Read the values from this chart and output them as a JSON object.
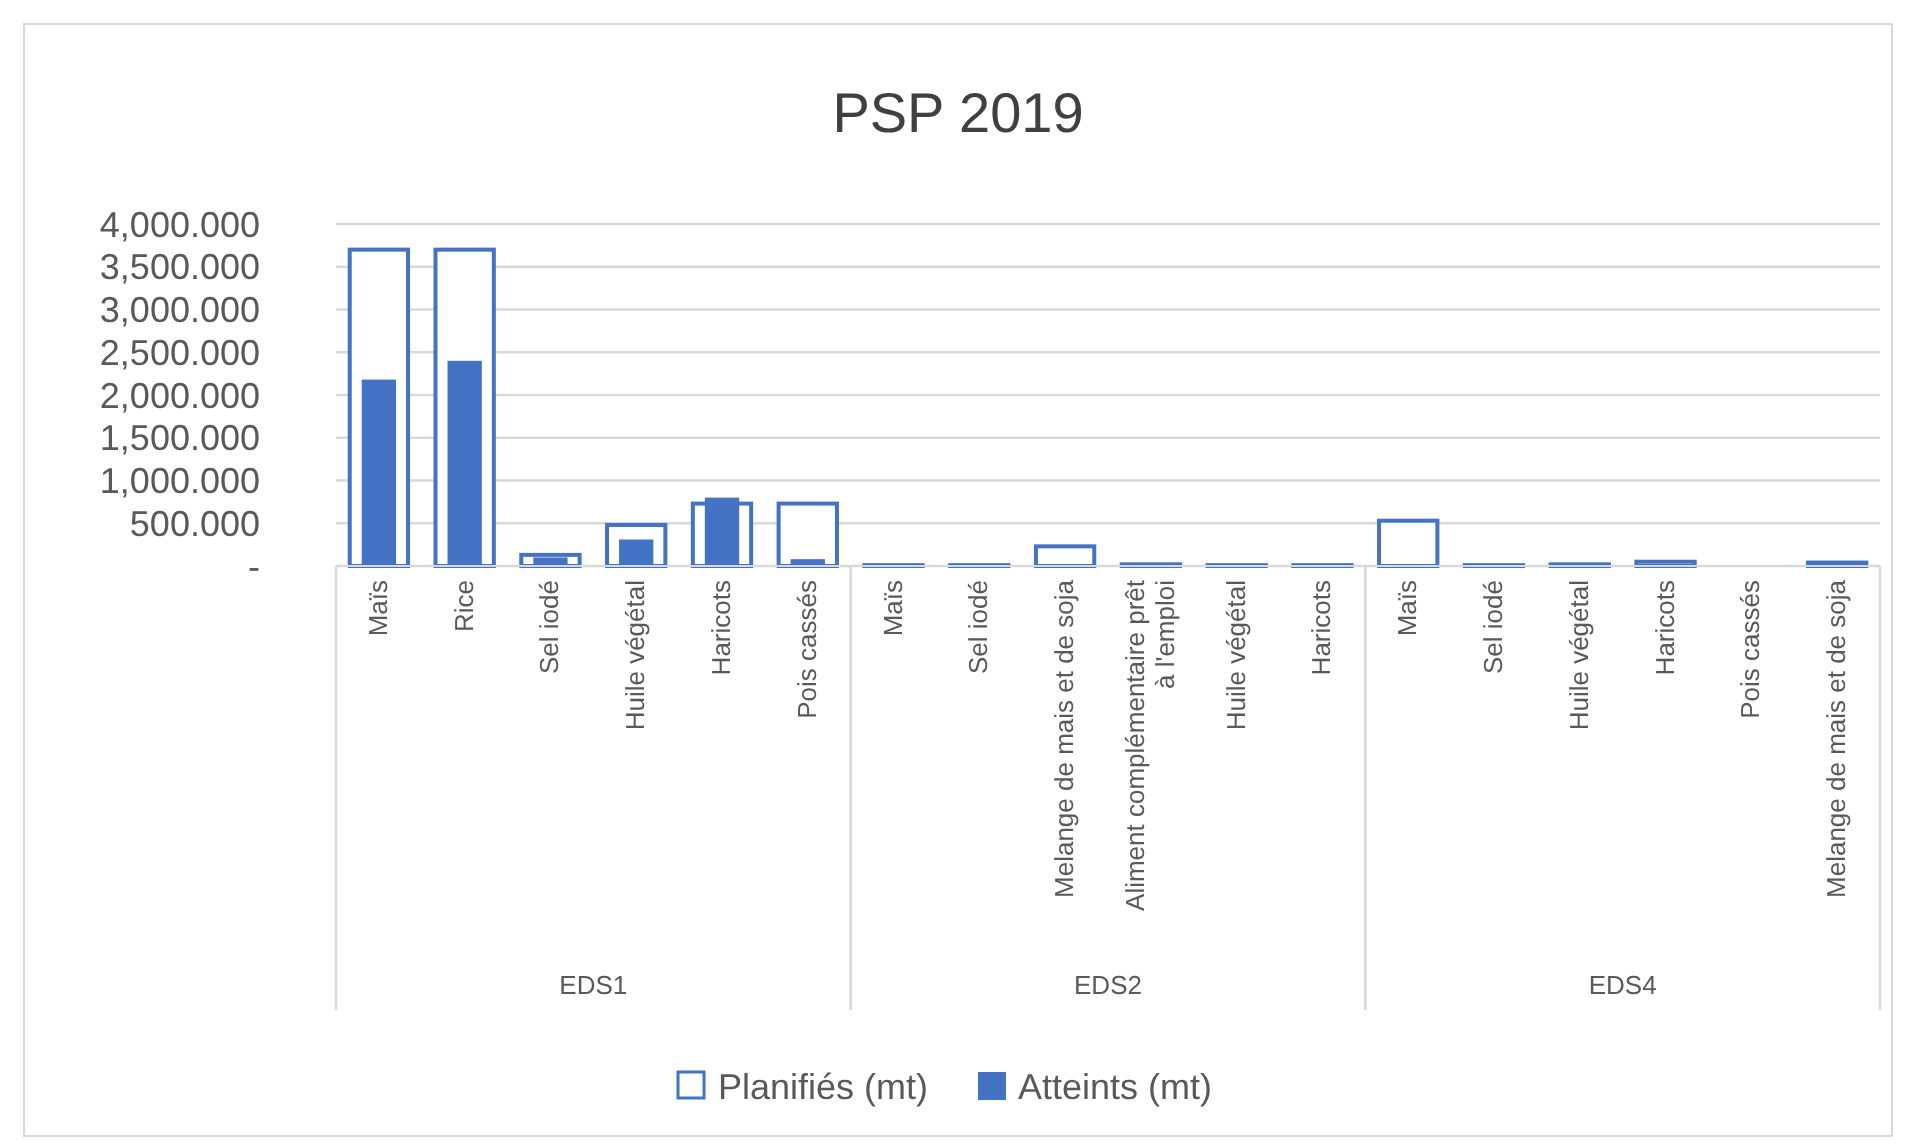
{
  "chart_data": {
    "type": "bar",
    "title": "PSP 2019",
    "categories": [
      "Maïs",
      "Rice",
      "Sel iodé",
      "Huile végétal",
      "Haricots",
      "Pois cassés",
      "Maïs",
      "Sel iodé",
      "Melange de mais et de soja",
      "Aliment complémentaire prêt à l'emploi",
      "Huile végétal",
      "Haricots",
      "Maïs",
      "Sel iodé",
      "Huile végétal",
      "Haricots",
      "Pois cassés",
      "Melange de mais et de soja"
    ],
    "series": [
      {
        "name": "Planifiés (mt)",
        "color": "#4472c4",
        "values": [
          3700,
          3700,
          130,
          480,
          730,
          730,
          10,
          10,
          230,
          20,
          10,
          10,
          530,
          10,
          20,
          50,
          null,
          40
        ]
      },
      {
        "name": "Atteints (mt)",
        "color": "#4472c4",
        "values": [
          2180,
          2400,
          100,
          310,
          800,
          80,
          0,
          0,
          0,
          0,
          0,
          0,
          0,
          0,
          0,
          0,
          null,
          0
        ]
      }
    ],
    "ylim": [
      0,
      4000
    ],
    "yticks": [
      {
        "value": 0,
        "label": "-"
      },
      {
        "value": 500,
        "label": "500.000"
      },
      {
        "value": 1000,
        "label": "1,000.000"
      },
      {
        "value": 1500,
        "label": "1,500.000"
      },
      {
        "value": 2000,
        "label": "2,000.000"
      },
      {
        "value": 2500,
        "label": "2,500.000"
      },
      {
        "value": 3000,
        "label": "3,000.000"
      },
      {
        "value": 3500,
        "label": "3,500.000"
      },
      {
        "value": 4000,
        "label": "4,000.000"
      }
    ],
    "annotations": [
      "EDS1",
      "EDS2",
      "EDS4"
    ],
    "grid": "y",
    "legend": "bottom"
  }
}
